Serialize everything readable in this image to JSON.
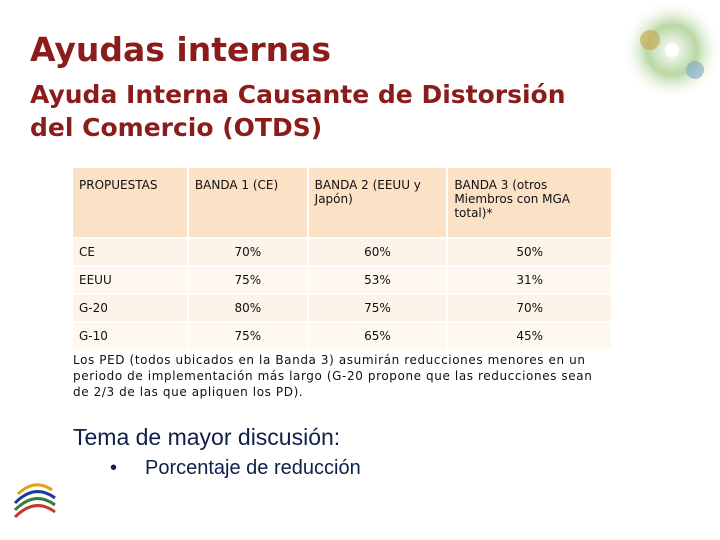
{
  "header": {
    "title": "Ayudas internas",
    "subtitle": [
      "Ayuda Interna Causante de Distorsión",
      "del Comercio (OTDS)"
    ]
  },
  "table": {
    "columns": [
      "PROPUESTAS",
      "BANDA 1 (CE)",
      "BANDA 2 (EEUU y Japón)",
      "BANDA 3 (otros Miembros con MGA total)*"
    ],
    "rows": [
      [
        "CE",
        "70%",
        "60%",
        "50%"
      ],
      [
        "EEUU",
        "75%",
        "53%",
        "31%"
      ],
      [
        "G-20",
        "80%",
        "75%",
        "70%"
      ],
      [
        "G-10",
        "75%",
        "65%",
        "45%"
      ]
    ]
  },
  "note": "Los PED (todos ubicados en la Banda 3) asumirán reducciones menores en un periodo de implementación más largo (G-20 propone que las reducciones sean de 2/3 de las que apliquen los PD).",
  "topic": {
    "heading": "Tema de mayor discusión:",
    "bullets": [
      "Porcentaje de reducción"
    ]
  }
}
